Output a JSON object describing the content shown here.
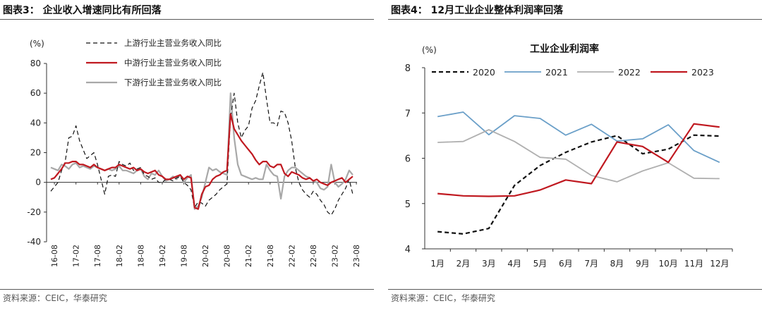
{
  "left": {
    "title": "图表3：  企业收入增速同比有所回落",
    "source": "资料来源：CEIC，华泰研究",
    "chart_data": {
      "type": "line",
      "unit_label": "(%)",
      "ylim": [
        -40,
        80
      ],
      "yticks": [
        -40,
        -20,
        0,
        20,
        40,
        60,
        80
      ],
      "x_tick_labels": [
        "16-08",
        "17-02",
        "17-08",
        "18-02",
        "18-08",
        "19-02",
        "19-08",
        "20-02",
        "20-08",
        "21-02",
        "21-08",
        "22-02",
        "22-08",
        "23-02",
        "23-08"
      ],
      "x_start": "2016-07",
      "series": [
        {
          "name": "上游行业主营业务收入同比",
          "color": "#111111",
          "dash": "6,4",
          "width": 1.2,
          "values": [
            -6,
            -3,
            0,
            8,
            14,
            30,
            31,
            38,
            28,
            22,
            16,
            18,
            20,
            12,
            2,
            -8,
            4,
            5,
            4,
            14,
            12,
            11,
            13,
            8,
            9,
            10,
            5,
            4,
            2,
            3,
            0,
            0,
            2,
            2,
            1,
            3,
            4,
            0,
            -2,
            -5,
            -17,
            -13,
            -14,
            -16,
            -12,
            -10,
            -8,
            -5,
            -3,
            -1,
            44,
            60,
            40,
            30,
            35,
            38,
            50,
            55,
            65,
            74,
            56,
            40,
            40,
            38,
            48,
            47,
            40,
            28,
            10,
            0,
            -5,
            -8,
            -10,
            -6,
            -8,
            -12,
            -15,
            -20,
            -22,
            -18,
            -12,
            -8,
            -4,
            2,
            -8
          ]
        },
        {
          "name": "中游行业主营业务收入同比",
          "color": "#c01920",
          "dash": "",
          "width": 2.2,
          "values": [
            2,
            3,
            6,
            9,
            13,
            13,
            14,
            14,
            12,
            12,
            11,
            10,
            12,
            10,
            9,
            8,
            9,
            10,
            10,
            12,
            11,
            10,
            9,
            10,
            8,
            9,
            7,
            6,
            7,
            8,
            5,
            4,
            2,
            2,
            3,
            4,
            5,
            2,
            4,
            3,
            -17,
            -18,
            -8,
            -3,
            -2,
            2,
            4,
            5,
            7,
            8,
            46,
            36,
            32,
            28,
            25,
            22,
            19,
            15,
            12,
            14,
            14,
            11,
            10,
            12,
            12,
            6,
            4,
            7,
            6,
            5,
            3,
            2,
            3,
            1,
            2,
            0,
            -1,
            -2,
            0,
            1,
            2,
            3,
            0,
            2,
            4
          ]
        },
        {
          "name": "下游行业主营业务收入同比",
          "color": "#a8a8a8",
          "dash": "",
          "width": 2.2,
          "values": [
            10,
            9,
            8,
            12,
            11,
            9,
            12,
            13,
            10,
            11,
            10,
            9,
            11,
            10,
            9,
            8,
            9,
            8,
            9,
            11,
            8,
            8,
            7,
            6,
            8,
            9,
            4,
            2,
            6,
            5,
            8,
            4,
            1,
            2,
            4,
            2,
            5,
            0,
            3,
            5,
            -18,
            -16,
            -10,
            0,
            10,
            8,
            9,
            7,
            6,
            5,
            60,
            30,
            12,
            5,
            4,
            3,
            2,
            3,
            2,
            2,
            12,
            8,
            5,
            4,
            -11,
            4,
            8,
            10,
            10,
            8,
            6,
            4,
            3,
            1,
            0,
            -4,
            -5,
            -3,
            12,
            0,
            -3,
            -1,
            2,
            8,
            5
          ]
        }
      ]
    }
  },
  "right": {
    "title": "图表4：  12月工业企业整体利润率回落",
    "source": "资料来源：CEIC，华泰研究",
    "chart_data": {
      "type": "line",
      "title": "工业企业利润率",
      "unit_label": "(%)",
      "ylim": [
        4,
        8
      ],
      "yticks": [
        4,
        5,
        6,
        7,
        8
      ],
      "categories": [
        "1月",
        "2月",
        "3月",
        "4月",
        "5月",
        "6月",
        "7月",
        "8月",
        "9月",
        "10月",
        "11月",
        "12月"
      ],
      "series": [
        {
          "name": "2020",
          "color": "#111111",
          "dash": "6,4",
          "width": 2.2,
          "values": [
            4.38,
            4.33,
            4.45,
            5.4,
            5.84,
            6.13,
            6.36,
            6.5,
            6.1,
            6.2,
            6.51,
            6.49
          ]
        },
        {
          "name": "2021",
          "color": "#6a9fc8",
          "dash": "",
          "width": 1.8,
          "values": [
            6.92,
            7.02,
            6.52,
            6.94,
            6.88,
            6.51,
            6.75,
            6.38,
            6.43,
            6.74,
            6.17,
            5.91
          ]
        },
        {
          "name": "2022",
          "color": "#b0b0b0",
          "dash": "",
          "width": 1.8,
          "values": [
            6.35,
            6.37,
            6.63,
            6.37,
            6.02,
            5.98,
            5.62,
            5.48,
            5.72,
            5.9,
            5.56,
            5.55
          ]
        },
        {
          "name": "2023",
          "color": "#c01920",
          "dash": "",
          "width": 2.2,
          "values": [
            5.22,
            5.17,
            5.16,
            5.17,
            5.3,
            5.52,
            5.44,
            6.36,
            6.26,
            5.91,
            6.76,
            6.69
          ]
        }
      ]
    }
  }
}
